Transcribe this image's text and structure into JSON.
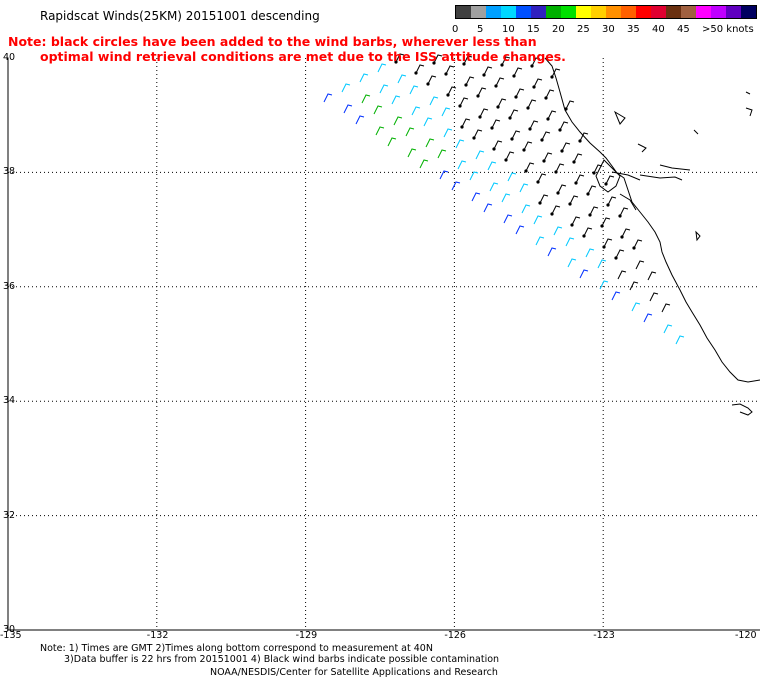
{
  "title": "Rapidscat Winds(25KM) 20151001 descending",
  "note": {
    "line1": "Note: black circles have been added to the wind barbs, wherever less than",
    "line2": "optimal wind retrieval conditions are met due to the ISS attitude changes."
  },
  "colorbar": {
    "colors": [
      "#404040",
      "#a0a0a0",
      "#00a0ff",
      "#00d8ff",
      "#0050ff",
      "#3020c0",
      "#00b000",
      "#00e000",
      "#ffff00",
      "#ffd000",
      "#ff9000",
      "#ff6000",
      "#ff0000",
      "#e00030",
      "#6a3010",
      "#a06040",
      "#ff00ff",
      "#c000ff",
      "#6000c0",
      "#000060"
    ],
    "labels": [
      "0",
      "5",
      "10",
      "15",
      "20",
      "25",
      "30",
      "35",
      "40",
      "45",
      ">50 knots"
    ]
  },
  "axes": {
    "lon_labels": [
      "-135",
      "-132",
      "-129",
      "-126",
      "-123",
      "-120"
    ],
    "lat_labels": [
      "40",
      "38",
      "36",
      "34",
      "32",
      "30"
    ],
    "lon_range": [
      -135,
      -120
    ],
    "lat_range": [
      30,
      40
    ]
  },
  "footnote": {
    "line1": "Note: 1) Times are GMT 2)Times along bottom correspond to measurement at 40N",
    "line2": "3)Data buffer is 22 hrs from 20151001 4) Black wind barbs indicate possible contamination"
  },
  "credit": "NOAA/NESDIS/Center for Satellite Applications and Research",
  "legend_colors": {
    "calm": "#000000",
    "light": "#00c8ff",
    "moderate": "#0030ff",
    "fresh": "#00b000"
  }
}
